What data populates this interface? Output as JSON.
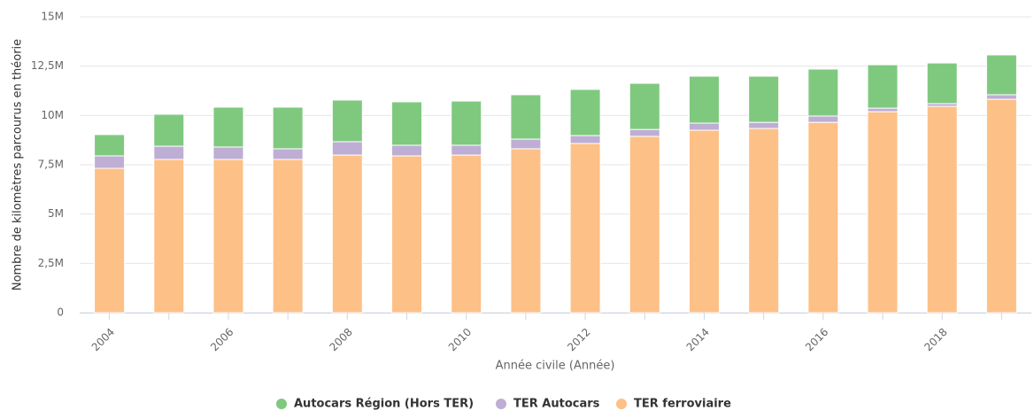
{
  "chart_data": {
    "type": "stacked_bar",
    "x_label": "Année civile (Année)",
    "y_label": "Nombre de kilomètres parcourus en théorie",
    "categories": [
      "2004",
      null,
      "2006",
      null,
      "2008",
      null,
      "2010",
      null,
      "2012",
      null,
      "2014",
      null,
      "2016",
      null,
      "2018",
      null
    ],
    "series": [
      {
        "name": "Autocars Région (Hors TER)",
        "color": "#7fc97f",
        "values": [
          1080000,
          1620000,
          2020000,
          2110000,
          2110000,
          2200000,
          2240000,
          2250000,
          2340000,
          2340000,
          2380000,
          2340000,
          2380000,
          2200000,
          2060000,
          2020000
        ]
      },
      {
        "name": "TER Autocars",
        "color": "#beaed4",
        "values": [
          630000,
          670000,
          630000,
          540000,
          680000,
          540000,
          500000,
          490000,
          400000,
          350000,
          360000,
          310000,
          320000,
          180000,
          140000,
          230000
        ]
      },
      {
        "name": "TER ferroviaire",
        "color": "#fdc086",
        "values": [
          7320000,
          7770000,
          7770000,
          7770000,
          7990000,
          7950000,
          7990000,
          8310000,
          8580000,
          8940000,
          9250000,
          9340000,
          9650000,
          10190000,
          10460000,
          10820000
        ]
      }
    ],
    "ylim": [
      0,
      15000000
    ],
    "yticks": [
      0,
      {
        "value": 2500000,
        "label": "2,5M"
      },
      {
        "value": 5000000,
        "label": "5M"
      },
      {
        "value": 7500000,
        "label": "7,5M"
      },
      {
        "value": 10000000,
        "label": "10M"
      },
      {
        "value": 12500000,
        "label": "12,5M"
      },
      {
        "value": 15000000,
        "label": "15M"
      }
    ],
    "grid": true,
    "legend": "bottom"
  }
}
